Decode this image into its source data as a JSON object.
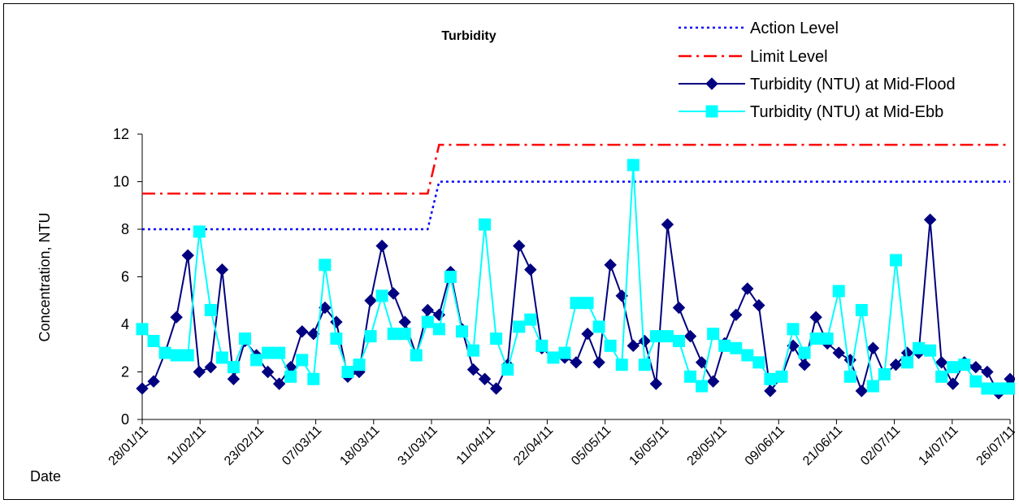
{
  "chart_data": {
    "type": "line",
    "title": "Turbidity",
    "ylabel": "Concentration, NTU",
    "xlabel": "Date",
    "ylim": [
      0,
      12
    ],
    "yticks": [
      0,
      2,
      4,
      6,
      8,
      10,
      12
    ],
    "x_tick_labels": [
      "28/01/11",
      "11/02/11",
      "23/02/11",
      "07/03/11",
      "18/03/11",
      "31/03/11",
      "11/04/11",
      "22/04/11",
      "05/05/11",
      "16/05/11",
      "28/05/11",
      "09/06/11",
      "21/06/11",
      "02/07/11",
      "14/07/11",
      "26/07/11"
    ],
    "grid": false,
    "legend_position": "top-right",
    "n_samples": 77,
    "series": [
      {
        "name": "Action Level",
        "color": "#0000ff",
        "style": "dotted",
        "points": [
          [
            0,
            8
          ],
          [
            25,
            8
          ],
          [
            26,
            10
          ],
          [
            76,
            10
          ]
        ]
      },
      {
        "name": "Limit Level",
        "color": "#ff0000",
        "style": "dash-dot",
        "points": [
          [
            0,
            9.5
          ],
          [
            25,
            9.5
          ],
          [
            26,
            11.55
          ],
          [
            76,
            11.55
          ]
        ]
      },
      {
        "name": "Turbidity (NTU) at Mid-Flood",
        "color": "#000080",
        "marker": "diamond",
        "values": [
          1.3,
          1.6,
          2.8,
          4.3,
          6.9,
          2.0,
          2.2,
          6.3,
          1.7,
          3.3,
          2.7,
          2.0,
          1.5,
          2.2,
          3.7,
          3.6,
          4.7,
          4.1,
          1.8,
          2.0,
          5.0,
          7.3,
          5.3,
          4.1,
          2.7,
          4.6,
          4.4,
          6.2,
          3.8,
          2.1,
          1.7,
          1.3,
          2.3,
          7.3,
          6.3,
          3.0,
          2.6,
          2.6,
          2.4,
          3.6,
          2.4,
          6.5,
          5.2,
          3.1,
          3.3,
          1.5,
          8.2,
          4.7,
          3.5,
          2.4,
          1.6,
          3.2,
          4.4,
          5.5,
          4.8,
          1.2,
          1.8,
          3.1,
          2.3,
          4.3,
          3.2,
          2.8,
          2.5,
          1.2,
          3.0,
          1.9,
          2.3,
          2.8,
          2.8,
          8.4,
          2.4,
          1.5,
          2.4,
          2.2,
          2.0,
          1.1,
          1.7
        ]
      },
      {
        "name": "Turbidity (NTU) at Mid-Ebb",
        "color": "#00ffff",
        "marker": "square",
        "values": [
          3.8,
          3.3,
          2.8,
          2.7,
          2.7,
          7.9,
          4.6,
          2.6,
          2.2,
          3.4,
          2.5,
          2.8,
          2.8,
          1.8,
          2.5,
          1.7,
          6.5,
          3.4,
          2.0,
          2.3,
          3.5,
          5.2,
          3.6,
          3.6,
          2.7,
          4.1,
          3.8,
          6.0,
          3.7,
          2.9,
          8.2,
          3.4,
          2.1,
          3.9,
          4.2,
          3.1,
          2.6,
          2.8,
          4.9,
          4.9,
          3.9,
          3.1,
          2.3,
          10.7,
          2.3,
          3.5,
          3.5,
          3.3,
          1.8,
          1.4,
          3.6,
          3.1,
          3.0,
          2.7,
          2.4,
          1.7,
          1.8,
          3.8,
          2.8,
          3.4,
          3.4,
          5.4,
          1.8,
          4.6,
          1.4,
          1.9,
          6.7,
          2.4,
          3.0,
          2.9,
          1.8,
          2.2,
          2.3,
          1.6,
          1.3,
          1.3,
          1.3
        ]
      }
    ]
  }
}
